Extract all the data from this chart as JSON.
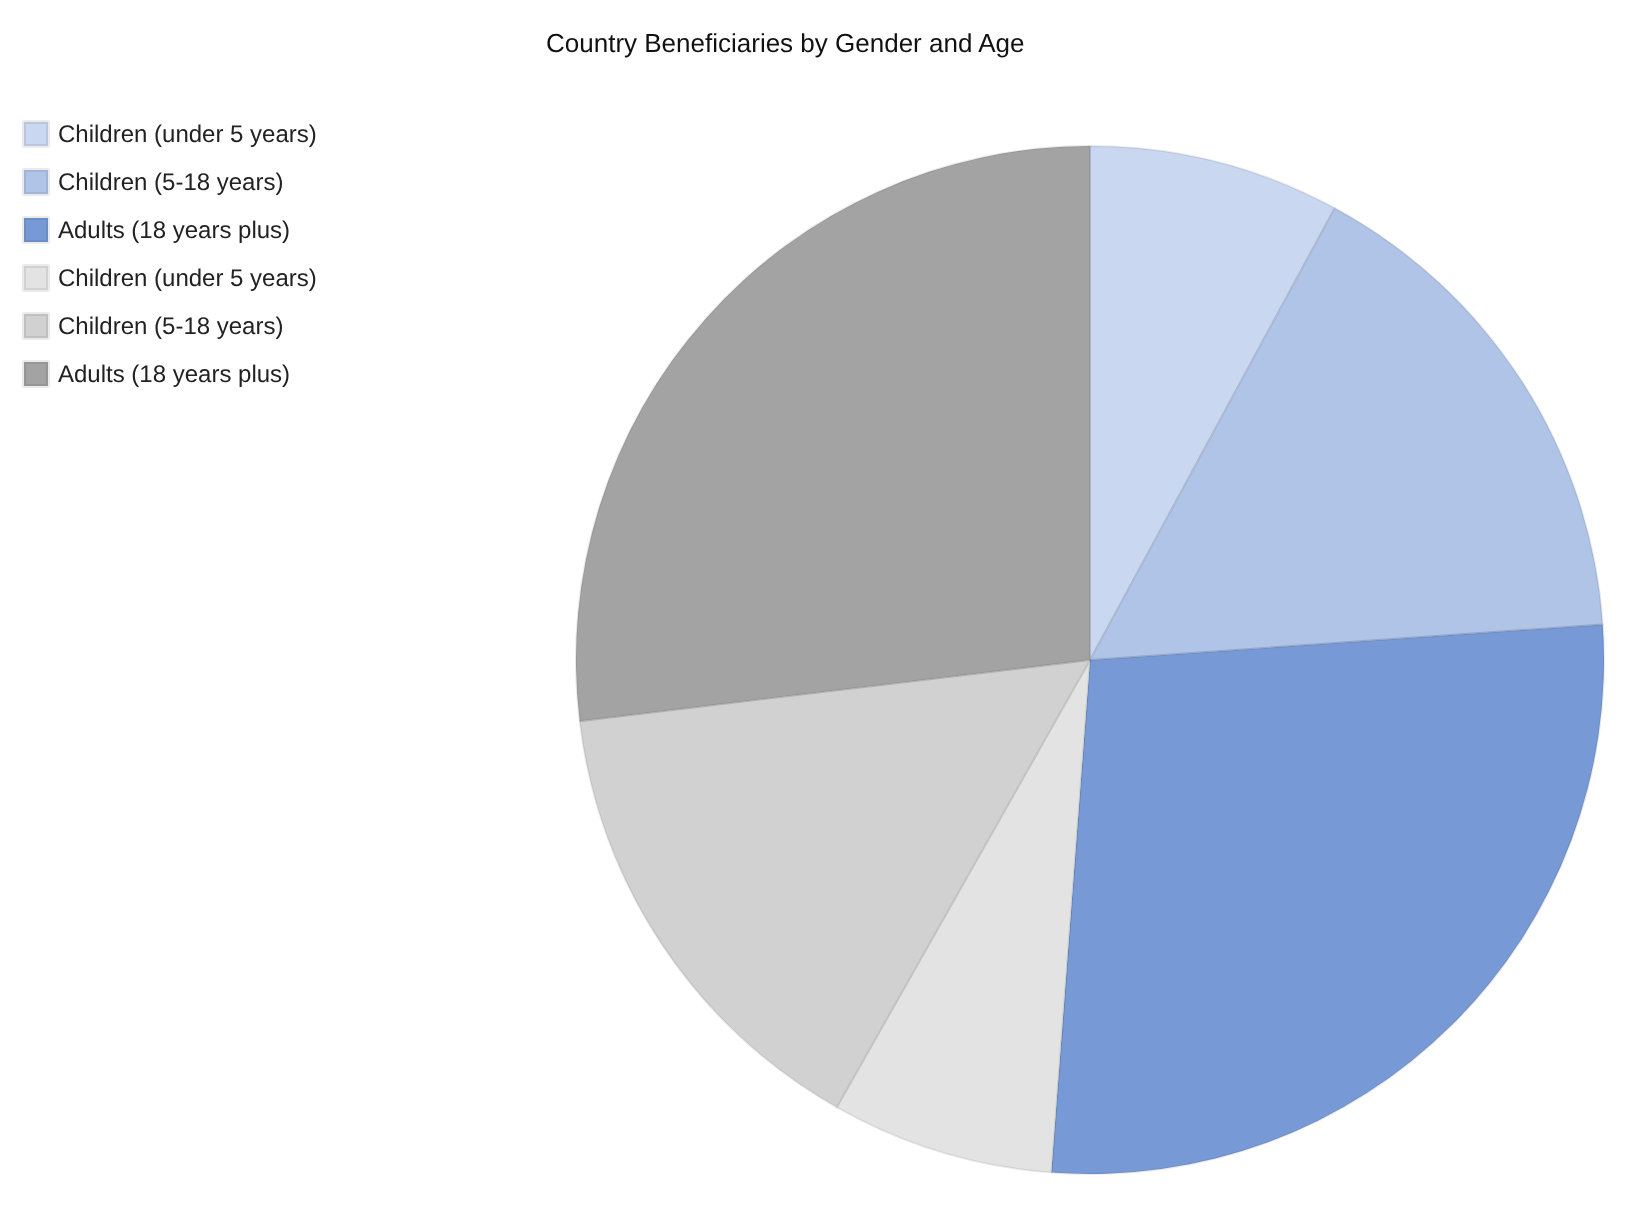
{
  "chart_data": {
    "type": "pie",
    "title": "Country Beneficiaries by Gender and Age",
    "categories": [
      "Children (under 5 years)",
      "Children (5-18 years)",
      "Adults (18 years plus)",
      "Children (under 5 years)",
      "Children (5-18 years)",
      "Adults (18 years plus)"
    ],
    "values": [
      7.9,
      16.0,
      27.3,
      7.0,
      14.9,
      26.9
    ],
    "colors": [
      "#c9d7f0",
      "#b0c4e8",
      "#7799d6",
      "#e3e3e3",
      "#d1d1d1",
      "#a3a3a3"
    ],
    "legend": "top left"
  }
}
